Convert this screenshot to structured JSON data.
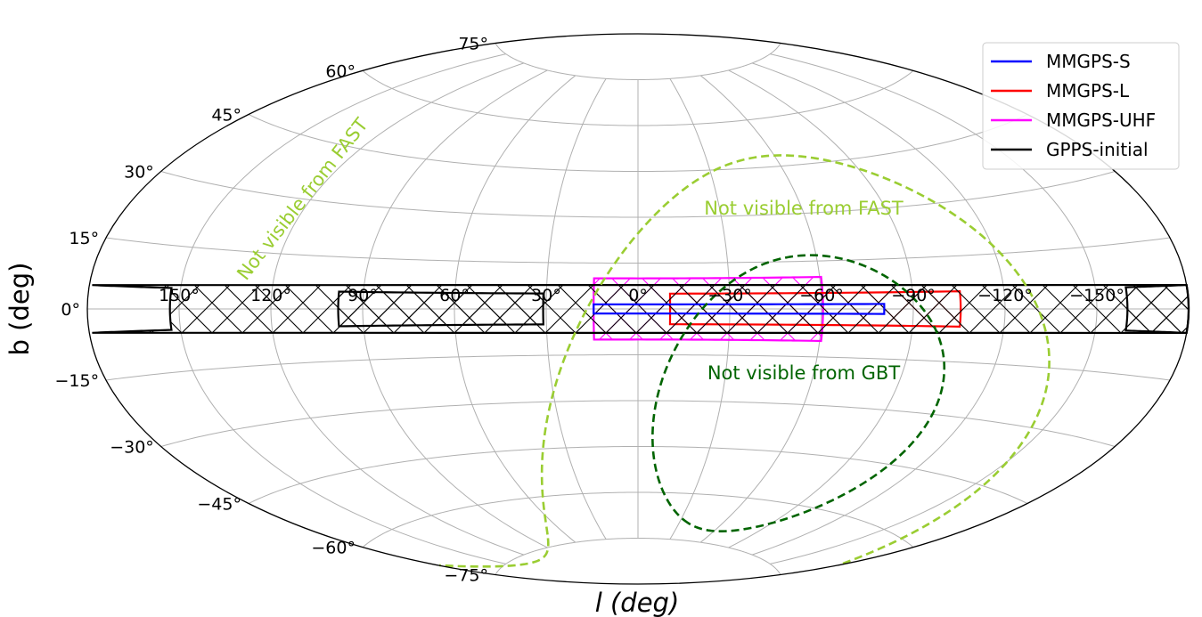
{
  "chart_data": {
    "type": "aitoff-sky-map",
    "projection": "Aitoff",
    "xlabel": "l (deg)",
    "ylabel": "b (deg)",
    "grid": true,
    "legend_position": "top-right",
    "longitude_ticks": [
      {
        "value": 150,
        "label": "150°"
      },
      {
        "value": 120,
        "label": "120°"
      },
      {
        "value": 90,
        "label": "90°"
      },
      {
        "value": 60,
        "label": "60°"
      },
      {
        "value": 30,
        "label": "30°"
      },
      {
        "value": 0,
        "label": "0°"
      },
      {
        "value": -30,
        "label": "−30°"
      },
      {
        "value": -60,
        "label": "−60°"
      },
      {
        "value": -90,
        "label": "−90°"
      },
      {
        "value": -120,
        "label": "−120°"
      },
      {
        "value": -150,
        "label": "−150°"
      }
    ],
    "latitude_ticks": [
      {
        "value": 75,
        "label": "75°"
      },
      {
        "value": 60,
        "label": "60°"
      },
      {
        "value": 45,
        "label": "45°"
      },
      {
        "value": 30,
        "label": "30°"
      },
      {
        "value": 15,
        "label": "15°"
      },
      {
        "value": 0,
        "label": "0°"
      },
      {
        "value": -15,
        "label": "−15°"
      },
      {
        "value": -30,
        "label": "−30°"
      },
      {
        "value": -45,
        "label": "−45°"
      },
      {
        "value": -60,
        "label": "−60°"
      },
      {
        "value": -75,
        "label": "−75°"
      }
    ],
    "surveys": [
      {
        "name": "MMGPS-S",
        "color": "#0000ff",
        "regions": [
          {
            "l_min": -80.5,
            "l_max": 14.5,
            "b_min": -1.5,
            "b_max": 1.5
          }
        ],
        "hatched": false
      },
      {
        "name": "MMGPS-L",
        "color": "#ff0000",
        "regions": [
          {
            "l_min": -105.5,
            "l_max": -10.5,
            "b_min": -5,
            "b_max": 5
          }
        ],
        "hatched": true
      },
      {
        "name": "MMGPS-UHF",
        "color": "#ff00ff",
        "regions": [
          {
            "l_min": -60.5,
            "l_max": 14.5,
            "b_min": -10,
            "b_max": 10
          }
        ],
        "hatched": true
      },
      {
        "name": "GPPS-initial",
        "color": "#000000",
        "regions": [
          {
            "l_min": 31,
            "l_max": 98,
            "b_min": -5,
            "b_max": 5
          },
          {
            "l_min": 153,
            "l_max": 180,
            "b_min": -5,
            "b_max": 5
          },
          {
            "l_min": -180,
            "l_max": -160,
            "b_min": -5,
            "b_max": 5
          }
        ],
        "hatched": true
      }
    ],
    "visibility_limits": [
      {
        "label": "Not visible from FAST",
        "color": "#9acd32",
        "dec_limit": -14.4
      },
      {
        "label": "Not visible from GBT",
        "color": "#006400",
        "dec_limit": -46
      }
    ]
  }
}
